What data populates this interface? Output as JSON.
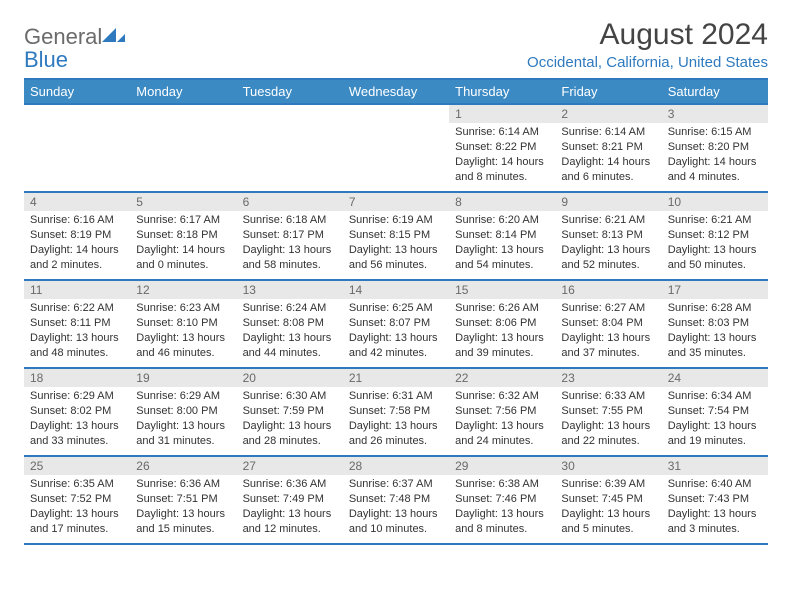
{
  "logo": {
    "word1": "General",
    "word2": "Blue"
  },
  "title": "August 2024",
  "location": "Occidental, California, United States",
  "colors": {
    "header_bg": "#3b8ac4",
    "header_border": "#2f7abf",
    "daynum_bg": "#e8e8e8",
    "text": "#333333",
    "title_color": "#444444"
  },
  "weekdays": [
    "Sunday",
    "Monday",
    "Tuesday",
    "Wednesday",
    "Thursday",
    "Friday",
    "Saturday"
  ],
  "grid": [
    [
      {
        "empty": true
      },
      {
        "empty": true
      },
      {
        "empty": true
      },
      {
        "empty": true
      },
      {
        "day": "1",
        "sunrise": "Sunrise: 6:14 AM",
        "sunset": "Sunset: 8:22 PM",
        "daylight1": "Daylight: 14 hours",
        "daylight2": "and 8 minutes."
      },
      {
        "day": "2",
        "sunrise": "Sunrise: 6:14 AM",
        "sunset": "Sunset: 8:21 PM",
        "daylight1": "Daylight: 14 hours",
        "daylight2": "and 6 minutes."
      },
      {
        "day": "3",
        "sunrise": "Sunrise: 6:15 AM",
        "sunset": "Sunset: 8:20 PM",
        "daylight1": "Daylight: 14 hours",
        "daylight2": "and 4 minutes."
      }
    ],
    [
      {
        "day": "4",
        "sunrise": "Sunrise: 6:16 AM",
        "sunset": "Sunset: 8:19 PM",
        "daylight1": "Daylight: 14 hours",
        "daylight2": "and 2 minutes."
      },
      {
        "day": "5",
        "sunrise": "Sunrise: 6:17 AM",
        "sunset": "Sunset: 8:18 PM",
        "daylight1": "Daylight: 14 hours",
        "daylight2": "and 0 minutes."
      },
      {
        "day": "6",
        "sunrise": "Sunrise: 6:18 AM",
        "sunset": "Sunset: 8:17 PM",
        "daylight1": "Daylight: 13 hours",
        "daylight2": "and 58 minutes."
      },
      {
        "day": "7",
        "sunrise": "Sunrise: 6:19 AM",
        "sunset": "Sunset: 8:15 PM",
        "daylight1": "Daylight: 13 hours",
        "daylight2": "and 56 minutes."
      },
      {
        "day": "8",
        "sunrise": "Sunrise: 6:20 AM",
        "sunset": "Sunset: 8:14 PM",
        "daylight1": "Daylight: 13 hours",
        "daylight2": "and 54 minutes."
      },
      {
        "day": "9",
        "sunrise": "Sunrise: 6:21 AM",
        "sunset": "Sunset: 8:13 PM",
        "daylight1": "Daylight: 13 hours",
        "daylight2": "and 52 minutes."
      },
      {
        "day": "10",
        "sunrise": "Sunrise: 6:21 AM",
        "sunset": "Sunset: 8:12 PM",
        "daylight1": "Daylight: 13 hours",
        "daylight2": "and 50 minutes."
      }
    ],
    [
      {
        "day": "11",
        "sunrise": "Sunrise: 6:22 AM",
        "sunset": "Sunset: 8:11 PM",
        "daylight1": "Daylight: 13 hours",
        "daylight2": "and 48 minutes."
      },
      {
        "day": "12",
        "sunrise": "Sunrise: 6:23 AM",
        "sunset": "Sunset: 8:10 PM",
        "daylight1": "Daylight: 13 hours",
        "daylight2": "and 46 minutes."
      },
      {
        "day": "13",
        "sunrise": "Sunrise: 6:24 AM",
        "sunset": "Sunset: 8:08 PM",
        "daylight1": "Daylight: 13 hours",
        "daylight2": "and 44 minutes."
      },
      {
        "day": "14",
        "sunrise": "Sunrise: 6:25 AM",
        "sunset": "Sunset: 8:07 PM",
        "daylight1": "Daylight: 13 hours",
        "daylight2": "and 42 minutes."
      },
      {
        "day": "15",
        "sunrise": "Sunrise: 6:26 AM",
        "sunset": "Sunset: 8:06 PM",
        "daylight1": "Daylight: 13 hours",
        "daylight2": "and 39 minutes."
      },
      {
        "day": "16",
        "sunrise": "Sunrise: 6:27 AM",
        "sunset": "Sunset: 8:04 PM",
        "daylight1": "Daylight: 13 hours",
        "daylight2": "and 37 minutes."
      },
      {
        "day": "17",
        "sunrise": "Sunrise: 6:28 AM",
        "sunset": "Sunset: 8:03 PM",
        "daylight1": "Daylight: 13 hours",
        "daylight2": "and 35 minutes."
      }
    ],
    [
      {
        "day": "18",
        "sunrise": "Sunrise: 6:29 AM",
        "sunset": "Sunset: 8:02 PM",
        "daylight1": "Daylight: 13 hours",
        "daylight2": "and 33 minutes."
      },
      {
        "day": "19",
        "sunrise": "Sunrise: 6:29 AM",
        "sunset": "Sunset: 8:00 PM",
        "daylight1": "Daylight: 13 hours",
        "daylight2": "and 31 minutes."
      },
      {
        "day": "20",
        "sunrise": "Sunrise: 6:30 AM",
        "sunset": "Sunset: 7:59 PM",
        "daylight1": "Daylight: 13 hours",
        "daylight2": "and 28 minutes."
      },
      {
        "day": "21",
        "sunrise": "Sunrise: 6:31 AM",
        "sunset": "Sunset: 7:58 PM",
        "daylight1": "Daylight: 13 hours",
        "daylight2": "and 26 minutes."
      },
      {
        "day": "22",
        "sunrise": "Sunrise: 6:32 AM",
        "sunset": "Sunset: 7:56 PM",
        "daylight1": "Daylight: 13 hours",
        "daylight2": "and 24 minutes."
      },
      {
        "day": "23",
        "sunrise": "Sunrise: 6:33 AM",
        "sunset": "Sunset: 7:55 PM",
        "daylight1": "Daylight: 13 hours",
        "daylight2": "and 22 minutes."
      },
      {
        "day": "24",
        "sunrise": "Sunrise: 6:34 AM",
        "sunset": "Sunset: 7:54 PM",
        "daylight1": "Daylight: 13 hours",
        "daylight2": "and 19 minutes."
      }
    ],
    [
      {
        "day": "25",
        "sunrise": "Sunrise: 6:35 AM",
        "sunset": "Sunset: 7:52 PM",
        "daylight1": "Daylight: 13 hours",
        "daylight2": "and 17 minutes."
      },
      {
        "day": "26",
        "sunrise": "Sunrise: 6:36 AM",
        "sunset": "Sunset: 7:51 PM",
        "daylight1": "Daylight: 13 hours",
        "daylight2": "and 15 minutes."
      },
      {
        "day": "27",
        "sunrise": "Sunrise: 6:36 AM",
        "sunset": "Sunset: 7:49 PM",
        "daylight1": "Daylight: 13 hours",
        "daylight2": "and 12 minutes."
      },
      {
        "day": "28",
        "sunrise": "Sunrise: 6:37 AM",
        "sunset": "Sunset: 7:48 PM",
        "daylight1": "Daylight: 13 hours",
        "daylight2": "and 10 minutes."
      },
      {
        "day": "29",
        "sunrise": "Sunrise: 6:38 AM",
        "sunset": "Sunset: 7:46 PM",
        "daylight1": "Daylight: 13 hours",
        "daylight2": "and 8 minutes."
      },
      {
        "day": "30",
        "sunrise": "Sunrise: 6:39 AM",
        "sunset": "Sunset: 7:45 PM",
        "daylight1": "Daylight: 13 hours",
        "daylight2": "and 5 minutes."
      },
      {
        "day": "31",
        "sunrise": "Sunrise: 6:40 AM",
        "sunset": "Sunset: 7:43 PM",
        "daylight1": "Daylight: 13 hours",
        "daylight2": "and 3 minutes."
      }
    ]
  ]
}
